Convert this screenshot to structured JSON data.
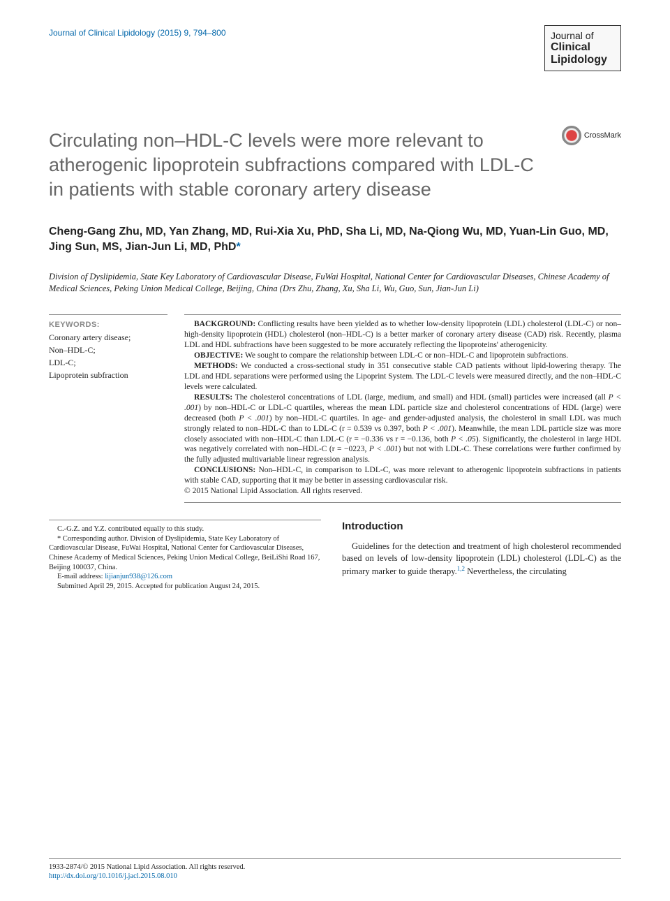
{
  "header": {
    "citation": "Journal of Clinical Lipidology (2015) 9, 794–800"
  },
  "journal_logo": {
    "line1": "Journal of",
    "line2": "Clinical",
    "line3": "Lipidology"
  },
  "crossmark": {
    "label": "CrossMark"
  },
  "title": "Circulating non–HDL-C levels were more relevant to atherogenic lipoprotein subfractions compared with LDL-C in patients with stable coronary artery disease",
  "authors": "Cheng-Gang Zhu, MD, Yan Zhang, MD, Rui-Xia Xu, PhD, Sha Li, MD, Na-Qiong Wu, MD, Yuan-Lin Guo, MD, Jing Sun, MS, Jian-Jun Li, MD, PhD",
  "corr_mark": "*",
  "affiliation": "Division of Dyslipidemia, State Key Laboratory of Cardiovascular Disease, FuWai Hospital, National Center for Cardiovascular Diseases, Chinese Academy of Medical Sciences, Peking Union Medical College, Beijing, China (Drs Zhu, Zhang, Xu, Sha Li, Wu, Guo, Sun, Jian-Jun Li)",
  "keywords": {
    "heading": "KEYWORDS:",
    "items": [
      "Coronary artery disease;",
      "Non–HDL-C;",
      "LDL-C;",
      "Lipoprotein subfraction"
    ]
  },
  "abstract": {
    "background_label": "BACKGROUND:",
    "background": "Conflicting results have been yielded as to whether low-density lipoprotein (LDL) cholesterol (LDL-C) or non–high-density lipoprotein (HDL) cholesterol (non–HDL-C) is a better marker of coronary artery disease (CAD) risk. Recently, plasma LDL and HDL subfractions have been suggested to be more accurately reflecting the lipoproteins' atherogenicity.",
    "objective_label": "OBJECTIVE:",
    "objective": "We sought to compare the relationship between LDL-C or non–HDL-C and lipoprotein subfractions.",
    "methods_label": "METHODS:",
    "methods": "We conducted a cross-sectional study in 351 consecutive stable CAD patients without lipid-lowering therapy. The LDL and HDL separations were performed using the Lipoprint System. The LDL-C levels were measured directly, and the non–HDL-C levels were calculated.",
    "results_label": "RESULTS:",
    "results_a": "The cholesterol concentrations of LDL (large, medium, and small) and HDL (small) particles were increased (all ",
    "results_p1": "P < .001",
    "results_b": ") by non–HDL-C or LDL-C quartiles, whereas the mean LDL particle size and cholesterol concentrations of HDL (large) were decreased (both ",
    "results_p2": "P < .001",
    "results_c": ") by non–HDL-C quartiles. In age- and gender-adjusted analysis, the cholesterol in small LDL was much strongly related to non–HDL-C than to LDL-C (r = 0.539 vs 0.397, both ",
    "results_p3": "P < .001",
    "results_d": "). Meanwhile, the mean LDL particle size was more closely associated with non–HDL-C than LDL-C (r = −0.336 vs r = −0.136, both ",
    "results_p4": "P < .05",
    "results_e": "). Significantly, the cholesterol in large HDL was negatively correlated with non–HDL-C (r = −0223, ",
    "results_p5": "P < .001",
    "results_f": ") but not with LDL-C. These correlations were further confirmed by the fully adjusted multivariable linear regression analysis.",
    "conclusions_label": "CONCLUSIONS:",
    "conclusions": "Non–HDL-C, in comparison to LDL-C, was more relevant to atherogenic lipoprotein subfractions in patients with stable CAD, supporting that it may be better in assessing cardiovascular risk.",
    "copyright": "© 2015 National Lipid Association. All rights reserved."
  },
  "footnotes": {
    "contrib": "C.-G.Z. and Y.Z. contributed equally to this study.",
    "corr": "* Corresponding author. Division of Dyslipidemia, State Key Laboratory of Cardiovascular Disease, FuWai Hospital, National Center for Cardiovascular Diseases, Chinese Academy of Medical Sciences, Peking Union Medical College, BeiLiShi Road 167, Beijing 100037, China.",
    "email_label": "E-mail address: ",
    "email": "lijianjun938@126.com",
    "submitted": "Submitted April 29, 2015. Accepted for publication August 24, 2015."
  },
  "intro": {
    "heading": "Introduction",
    "text_a": "Guidelines for the detection and treatment of high cholesterol recommended based on levels of low-density lipoprotein (LDL) cholesterol (LDL-C) as the primary marker to guide therapy.",
    "ref": "1,2",
    "text_b": " Nevertheless, the circulating"
  },
  "bottom": {
    "issn": "1933-2874/© 2015 National Lipid Association. All rights reserved.",
    "doi": "http://dx.doi.org/10.1016/j.jacl.2015.08.010"
  },
  "colors": {
    "link": "#0066aa",
    "title_gray": "#666666",
    "rule": "#888888"
  }
}
